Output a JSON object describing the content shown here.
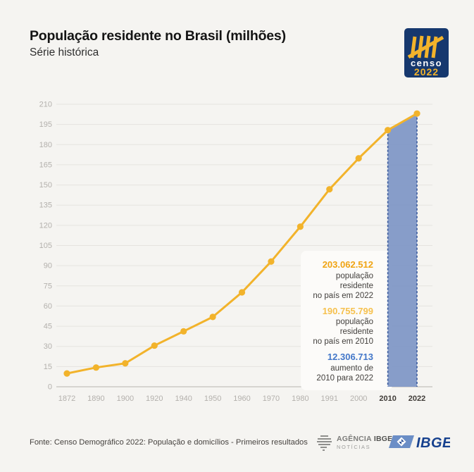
{
  "header": {
    "title": "População residente no Brasil (milhões)",
    "subtitle": "Série histórica"
  },
  "censo_logo": {
    "line1": "censo",
    "line2": "2022",
    "navy": "#16386E",
    "yellow": "#F2B32B"
  },
  "chart_data": {
    "type": "line",
    "title": "População residente no Brasil (milhões)",
    "series_name": "População residente (milhões)",
    "categories": [
      "1872",
      "1890",
      "1900",
      "1920",
      "1940",
      "1950",
      "1960",
      "1970",
      "1980",
      "1991",
      "2000",
      "2010",
      "2022"
    ],
    "values": [
      9.9,
      14.3,
      17.4,
      30.6,
      41.2,
      51.9,
      70.2,
      93.1,
      119.0,
      146.8,
      169.8,
      190.8,
      203.1
    ],
    "y_ticks": [
      0,
      15,
      30,
      45,
      60,
      75,
      90,
      105,
      120,
      135,
      150,
      165,
      180,
      195,
      210
    ],
    "ylim": [
      0,
      210
    ],
    "xlabel": "",
    "ylabel": "",
    "grid": "horizontal",
    "legend": "none",
    "line_color": "#F2B32B",
    "grid_color": "#E5E3DF",
    "baseline_color": "#B8B5B0",
    "axis_label_color": "#B3B0AC",
    "axis_label_bold_color": "#403C38",
    "bold_x_labels": [
      "2010",
      "2022"
    ],
    "highlight_band": {
      "from": "2010",
      "to": "2022",
      "fill": "#8198C6",
      "border": "#3A5A9D"
    }
  },
  "stats": [
    {
      "value": "203.062.512",
      "label": "população residente\nno país em 2022",
      "color": "#F0A413"
    },
    {
      "value": "190.755.799",
      "label": "população residente\nno país em 2010",
      "color": "#F6C14E"
    },
    {
      "value": "12.306.713",
      "label": "aumento de\n2010 para 2022",
      "color": "#4377C9"
    }
  ],
  "footer": {
    "source": "Fonte: Censo Demográfico 2022: População e domicílios - Primeiros resultados",
    "agencia_line1a": "AGÊNCIA",
    "agencia_line1b": "IBGE",
    "agencia_line2": "NOTÍCIAS",
    "ibge_label": "IBGE"
  }
}
